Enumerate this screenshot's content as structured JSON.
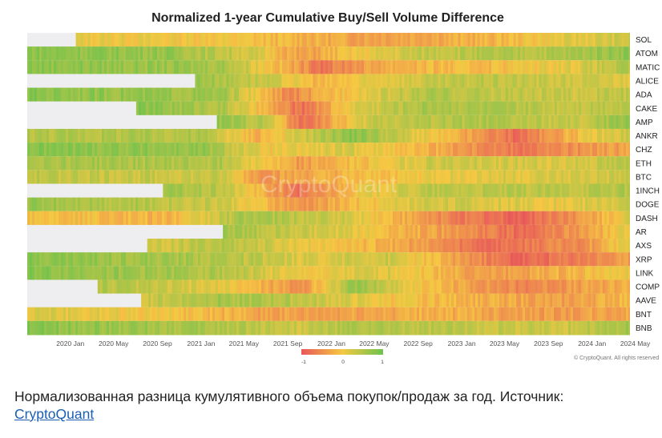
{
  "chart_data": {
    "type": "heatmap",
    "title": "Normalized 1-year Cumulative Buy/Sell Volume Difference",
    "y_categories": [
      "SOL",
      "ATOM",
      "MATIC",
      "ALICE",
      "ADA",
      "CAKE",
      "AMP",
      "ANKR",
      "CHZ",
      "ETH",
      "BTC",
      "1INCH",
      "DOGE",
      "DASH",
      "AR",
      "AXS",
      "XRP",
      "LINK",
      "COMP",
      "AAVE",
      "BNT",
      "BNB"
    ],
    "x_range": [
      "2019-12-01",
      "2024-07-15"
    ],
    "x_ticks": [
      "2020 Jan",
      "2020 May",
      "2020 Sep",
      "2021 Jan",
      "2021 May",
      "2021 Sep",
      "2022 Jan",
      "2022 May",
      "2022 Sep",
      "2023 Jan",
      "2023 May",
      "2023 Sep",
      "2024 Jan",
      "2024 May"
    ],
    "x_tick_dates": [
      "2020-01-01",
      "2020-05-01",
      "2020-09-01",
      "2021-01-01",
      "2021-05-01",
      "2021-09-01",
      "2022-01-01",
      "2022-05-01",
      "2022-09-01",
      "2023-01-01",
      "2023-05-01",
      "2023-09-01",
      "2024-01-01",
      "2024-05-01"
    ],
    "color_scale": {
      "min": -1,
      "max": 1,
      "ticks": [
        "-1",
        "0",
        "1"
      ],
      "colors": [
        "#e8575a",
        "#f5c842",
        "#6ec24e"
      ]
    },
    "rows": [
      {
        "name": "SOL",
        "start": "2020-04-15",
        "values": [
          [
            "2020-04-15",
            0.1
          ],
          [
            "2021-06-01",
            0.0
          ],
          [
            "2022-06-01",
            -0.3
          ],
          [
            "2023-06-01",
            -0.2
          ],
          [
            "2024-01-01",
            0.1
          ],
          [
            "2024-07-15",
            0.3
          ]
        ]
      },
      {
        "name": "ATOM",
        "start": "2019-12-01",
        "values": [
          [
            "2019-12-01",
            0.8
          ],
          [
            "2021-01-01",
            0.7
          ],
          [
            "2021-09-01",
            0.2
          ],
          [
            "2022-01-01",
            -0.4
          ],
          [
            "2022-06-01",
            0.0
          ],
          [
            "2023-01-01",
            0.4
          ],
          [
            "2024-01-01",
            0.5
          ],
          [
            "2024-07-15",
            0.8
          ]
        ]
      },
      {
        "name": "MATIC",
        "start": "2019-12-01",
        "values": [
          [
            "2019-12-01",
            0.8
          ],
          [
            "2021-06-01",
            0.6
          ],
          [
            "2022-03-01",
            -0.7
          ],
          [
            "2022-09-01",
            -0.2
          ],
          [
            "2023-06-01",
            -0.1
          ],
          [
            "2024-03-01",
            0.2
          ],
          [
            "2024-07-15",
            0.5
          ]
        ]
      },
      {
        "name": "ALICE",
        "start": "2021-03-15",
        "values": [
          [
            "2021-03-15",
            0.7
          ],
          [
            "2021-10-01",
            0.3
          ],
          [
            "2022-03-01",
            -0.2
          ],
          [
            "2022-09-01",
            0.2
          ],
          [
            "2023-06-01",
            0.4
          ],
          [
            "2024-07-15",
            0.2
          ]
        ]
      },
      {
        "name": "ADA",
        "start": "2019-12-01",
        "values": [
          [
            "2019-12-01",
            0.8
          ],
          [
            "2021-06-01",
            0.6
          ],
          [
            "2021-12-01",
            -0.6
          ],
          [
            "2022-06-01",
            0.1
          ],
          [
            "2023-01-01",
            0.5
          ],
          [
            "2024-01-01",
            0.3
          ],
          [
            "2024-07-15",
            0.4
          ]
        ]
      },
      {
        "name": "CAKE",
        "start": "2020-10-01",
        "values": [
          [
            "2020-10-01",
            0.8
          ],
          [
            "2021-06-01",
            0.5
          ],
          [
            "2022-01-01",
            -0.8
          ],
          [
            "2022-06-01",
            0.2
          ],
          [
            "2023-01-01",
            0.6
          ],
          [
            "2024-01-01",
            0.4
          ],
          [
            "2024-07-15",
            0.5
          ]
        ]
      },
      {
        "name": "AMP",
        "start": "2021-05-15",
        "values": [
          [
            "2021-05-15",
            0.7
          ],
          [
            "2021-10-01",
            0.4
          ],
          [
            "2022-01-01",
            -0.8
          ],
          [
            "2022-08-01",
            0.4
          ],
          [
            "2023-06-01",
            0.5
          ],
          [
            "2024-03-01",
            0.3
          ],
          [
            "2024-07-15",
            0.8
          ]
        ]
      },
      {
        "name": "ANKR",
        "start": "2019-12-01",
        "values": [
          [
            "2019-12-01",
            0.5
          ],
          [
            "2021-04-01",
            0.5
          ],
          [
            "2021-09-01",
            -0.2
          ],
          [
            "2022-06-01",
            0.8
          ],
          [
            "2023-01-01",
            0.0
          ],
          [
            "2023-09-01",
            -0.8
          ],
          [
            "2024-04-01",
            0.1
          ],
          [
            "2024-07-15",
            0.3
          ]
        ]
      },
      {
        "name": "CHZ",
        "start": "2019-12-01",
        "values": [
          [
            "2019-12-01",
            0.8
          ],
          [
            "2021-04-01",
            0.7
          ],
          [
            "2021-10-01",
            0.0
          ],
          [
            "2022-06-01",
            0.2
          ],
          [
            "2023-01-01",
            -0.2
          ],
          [
            "2023-09-01",
            -0.7
          ],
          [
            "2024-07-15",
            -0.3
          ]
        ]
      },
      {
        "name": "ETH",
        "start": "2019-12-01",
        "values": [
          [
            "2019-12-01",
            0.6
          ],
          [
            "2021-06-01",
            0.5
          ],
          [
            "2022-01-01",
            -0.4
          ],
          [
            "2022-06-01",
            -0.1
          ],
          [
            "2023-01-01",
            0.3
          ],
          [
            "2024-01-01",
            0.2
          ],
          [
            "2024-07-15",
            0.4
          ]
        ]
      },
      {
        "name": "BTC",
        "start": "2019-12-01",
        "values": [
          [
            "2019-12-01",
            0.4
          ],
          [
            "2021-06-01",
            0.3
          ],
          [
            "2021-09-01",
            -0.4
          ],
          [
            "2022-05-01",
            -0.2
          ],
          [
            "2023-01-01",
            0.1
          ],
          [
            "2024-01-01",
            0.2
          ],
          [
            "2024-07-15",
            0.3
          ]
        ]
      },
      {
        "name": "1INCH",
        "start": "2020-12-15",
        "values": [
          [
            "2020-12-15",
            0.6
          ],
          [
            "2021-06-01",
            0.4
          ],
          [
            "2022-01-01",
            -0.8
          ],
          [
            "2022-06-01",
            0.0
          ],
          [
            "2023-01-01",
            0.4
          ],
          [
            "2024-01-01",
            0.4
          ],
          [
            "2024-07-15",
            0.5
          ]
        ]
      },
      {
        "name": "DOGE",
        "start": "2019-12-01",
        "values": [
          [
            "2019-12-01",
            0.7
          ],
          [
            "2021-06-01",
            0.3
          ],
          [
            "2022-01-01",
            -0.5
          ],
          [
            "2022-06-01",
            -0.1
          ],
          [
            "2023-01-01",
            0.3
          ],
          [
            "2024-01-01",
            0.1
          ],
          [
            "2024-07-15",
            0.3
          ]
        ]
      },
      {
        "name": "DASH",
        "start": "2019-12-01",
        "values": [
          [
            "2019-12-01",
            0.0
          ],
          [
            "2021-01-01",
            -0.2
          ],
          [
            "2021-08-01",
            0.6
          ],
          [
            "2022-06-01",
            0.2
          ],
          [
            "2023-01-01",
            -0.5
          ],
          [
            "2023-09-01",
            -0.9
          ],
          [
            "2024-04-01",
            -0.3
          ],
          [
            "2024-07-15",
            0.2
          ]
        ]
      },
      {
        "name": "AR",
        "start": "2021-06-01",
        "values": [
          [
            "2021-06-01",
            0.6
          ],
          [
            "2022-01-01",
            0.3
          ],
          [
            "2022-06-01",
            0.1
          ],
          [
            "2023-01-01",
            -0.3
          ],
          [
            "2023-09-01",
            -0.8
          ],
          [
            "2024-04-01",
            -0.3
          ],
          [
            "2024-07-15",
            0.2
          ]
        ]
      },
      {
        "name": "AXS",
        "start": "2020-11-01",
        "values": [
          [
            "2020-11-01",
            0.2
          ],
          [
            "2021-06-01",
            0.5
          ],
          [
            "2022-01-01",
            0.1
          ],
          [
            "2022-09-01",
            -0.2
          ],
          [
            "2023-06-01",
            -0.8
          ],
          [
            "2024-03-01",
            -0.5
          ],
          [
            "2024-07-15",
            0.2
          ]
        ]
      },
      {
        "name": "XRP",
        "start": "2019-12-01",
        "values": [
          [
            "2019-12-01",
            0.8
          ],
          [
            "2021-06-01",
            0.5
          ],
          [
            "2022-01-01",
            0.2
          ],
          [
            "2022-09-01",
            0.3
          ],
          [
            "2023-06-01",
            -0.6
          ],
          [
            "2023-09-01",
            -0.9
          ],
          [
            "2024-07-15",
            -0.4
          ]
        ]
      },
      {
        "name": "LINK",
        "start": "2019-12-01",
        "values": [
          [
            "2019-12-01",
            0.8
          ],
          [
            "2021-06-01",
            0.5
          ],
          [
            "2022-01-01",
            0.0
          ],
          [
            "2022-09-01",
            0.2
          ],
          [
            "2023-06-01",
            -0.4
          ],
          [
            "2024-01-01",
            -0.2
          ],
          [
            "2024-07-15",
            0.1
          ]
        ]
      },
      {
        "name": "COMP",
        "start": "2020-06-15",
        "values": [
          [
            "2020-06-15",
            0.5
          ],
          [
            "2021-06-01",
            0.1
          ],
          [
            "2022-01-01",
            -0.5
          ],
          [
            "2022-06-01",
            0.7
          ],
          [
            "2023-01-01",
            -0.1
          ],
          [
            "2023-09-01",
            -0.6
          ],
          [
            "2024-07-15",
            -0.2
          ]
        ]
      },
      {
        "name": "AAVE",
        "start": "2020-10-15",
        "values": [
          [
            "2020-10-15",
            0.3
          ],
          [
            "2021-06-01",
            0.6
          ],
          [
            "2022-01-01",
            0.4
          ],
          [
            "2022-09-01",
            0.0
          ],
          [
            "2023-06-01",
            -0.2
          ],
          [
            "2024-01-01",
            -0.4
          ],
          [
            "2024-07-15",
            -0.1
          ]
        ]
      },
      {
        "name": "BNT",
        "start": "2019-12-01",
        "values": [
          [
            "2019-12-01",
            0.2
          ],
          [
            "2021-01-01",
            0.0
          ],
          [
            "2021-06-01",
            -0.2
          ],
          [
            "2022-01-01",
            -0.4
          ],
          [
            "2023-01-01",
            -0.2
          ],
          [
            "2024-01-01",
            -0.4
          ],
          [
            "2024-07-15",
            -0.3
          ]
        ]
      },
      {
        "name": "BNB",
        "start": "2019-12-01",
        "values": [
          [
            "2019-12-01",
            0.8
          ],
          [
            "2021-06-01",
            0.5
          ],
          [
            "2022-01-01",
            0.3
          ],
          [
            "2022-06-01",
            0.5
          ],
          [
            "2023-01-01",
            0.4
          ],
          [
            "2024-01-01",
            0.3
          ],
          [
            "2024-07-15",
            0.6
          ]
        ]
      }
    ]
  },
  "watermark": "CryptoQuant",
  "credit": "© CryptoQuant. All rights reserved",
  "caption": {
    "text": "Нормализованная разница кумулятивного объема покупок/продаж за год. Источник:",
    "link": "CryptoQuant"
  }
}
